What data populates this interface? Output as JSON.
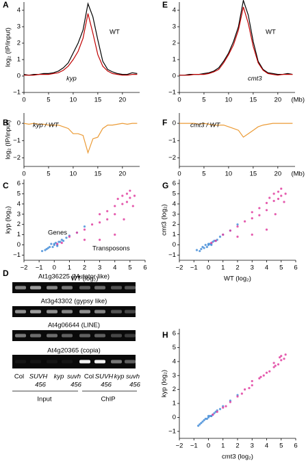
{
  "chart_data": [
    {
      "type": "line",
      "label": "A",
      "ylabel": "log₂ (IP/input)",
      "x": [
        0,
        1,
        2,
        3,
        4,
        5,
        6,
        7,
        8,
        9,
        10,
        11,
        12,
        13,
        14,
        15,
        16,
        17,
        18,
        19,
        20,
        21,
        22,
        23
      ],
      "xlim": [
        0,
        23.5
      ],
      "xticks": [
        0,
        5,
        10,
        15,
        20
      ],
      "ylim": [
        -1,
        4.5
      ],
      "yticks": [
        {
          "value": -1,
          "label": "−1"
        },
        0,
        1,
        2,
        3,
        4
      ],
      "series": [
        {
          "name": "WT",
          "color": "#000000",
          "values": [
            0.1,
            0.05,
            0.1,
            0.1,
            0.15,
            0.15,
            0.2,
            0.3,
            0.5,
            0.8,
            1.4,
            2.0,
            2.8,
            4.4,
            3.6,
            2.2,
            0.9,
            0.4,
            0.25,
            0.15,
            0.1,
            0.1,
            0.2,
            0.15
          ]
        },
        {
          "name": "kyp",
          "color": "#c00000",
          "values": [
            0.05,
            0.05,
            0.05,
            0.1,
            0.1,
            0.1,
            0.15,
            0.2,
            0.35,
            0.6,
            1.0,
            1.5,
            2.3,
            3.8,
            2.6,
            1.3,
            0.6,
            0.3,
            0.15,
            0.1,
            0.05,
            0.05,
            0.1,
            0.1
          ]
        }
      ]
    },
    {
      "type": "line",
      "label": "B",
      "ylabel": "log₂ (IP/input)",
      "x": [
        0,
        1,
        2,
        3,
        4,
        5,
        6,
        7,
        8,
        9,
        10,
        11,
        12,
        13,
        14,
        15,
        16,
        17,
        18,
        19,
        20,
        21,
        22,
        23
      ],
      "xlim": [
        0,
        23.5
      ],
      "xticks": [
        0,
        5,
        10,
        15,
        20
      ],
      "ylim": [
        -2.5,
        0.6
      ],
      "yticks": [
        {
          "value": -2,
          "label": "−2"
        },
        {
          "value": -1,
          "label": "−1"
        },
        0
      ],
      "series": [
        {
          "name": "kyp / WT",
          "color": "#eb9a34",
          "values": [
            0,
            -0.05,
            0,
            -0.05,
            -0.05,
            -0.1,
            -0.1,
            -0.1,
            -0.2,
            -0.3,
            -0.6,
            -0.6,
            -0.7,
            -1.7,
            -0.9,
            -0.8,
            -0.3,
            -0.1,
            -0.1,
            -0.05,
            0,
            -0.05,
            0,
            0
          ]
        }
      ]
    },
    {
      "type": "line",
      "label": "E",
      "xlabel": "(Mb)",
      "x": [
        0,
        1,
        2,
        3,
        4,
        5,
        6,
        7,
        8,
        9,
        10,
        11,
        12,
        13,
        14,
        15,
        16,
        17,
        18,
        19,
        20,
        21,
        22,
        23
      ],
      "xlim": [
        0,
        23.5
      ],
      "xticks": [
        0,
        5,
        10,
        15,
        20
      ],
      "ylim": [
        -1,
        4.5
      ],
      "yticks": [
        {
          "value": -1,
          "label": "−1"
        },
        0,
        1,
        2,
        3,
        4
      ],
      "series": [
        {
          "name": "WT",
          "color": "#000000",
          "values": [
            0.05,
            0.05,
            0.1,
            0.1,
            0.1,
            0.15,
            0.2,
            0.3,
            0.5,
            0.9,
            1.4,
            2.1,
            3.0,
            4.6,
            3.7,
            2.1,
            0.9,
            0.4,
            0.2,
            0.15,
            0.1,
            0.1,
            0.15,
            0.1
          ]
        },
        {
          "name": "cmt3",
          "color": "#c00000",
          "values": [
            0.05,
            0.05,
            0.05,
            0.1,
            0.1,
            0.1,
            0.15,
            0.25,
            0.4,
            0.8,
            1.3,
            1.9,
            2.8,
            4.2,
            3.2,
            1.8,
            0.8,
            0.35,
            0.15,
            0.1,
            0.05,
            0.1,
            0.1,
            0.1
          ]
        }
      ]
    },
    {
      "type": "line",
      "label": "F",
      "xlabel": "(Mb)",
      "x": [
        0,
        1,
        2,
        3,
        4,
        5,
        6,
        7,
        8,
        9,
        10,
        11,
        12,
        13,
        14,
        15,
        16,
        17,
        18,
        19,
        20,
        21,
        22,
        23
      ],
      "xlim": [
        0,
        23.5
      ],
      "xticks": [
        0,
        5,
        10,
        15,
        20
      ],
      "ylim": [
        -2.5,
        0.6
      ],
      "yticks": [
        {
          "value": -2,
          "label": "−2"
        },
        {
          "value": -1,
          "label": "−1"
        },
        0
      ],
      "series": [
        {
          "name": "cmt3 / WT",
          "color": "#eb9a34",
          "values": [
            0,
            0,
            0,
            0,
            -0.05,
            0,
            -0.05,
            -0.1,
            -0.1,
            -0.1,
            -0.2,
            -0.3,
            -0.4,
            -0.8,
            -0.6,
            -0.4,
            -0.2,
            -0.1,
            -0.05,
            0,
            0,
            0,
            0,
            0
          ]
        }
      ]
    },
    {
      "type": "scatter",
      "label": "C",
      "xlabel": "WT (log₂)",
      "ylabel": "kyp (log₂)",
      "xlim": [
        -2,
        6
      ],
      "xticks": [
        {
          "value": -2,
          "label": "−2"
        },
        {
          "value": -1,
          "label": "−1"
        },
        0,
        1,
        2,
        3,
        4,
        5,
        6
      ],
      "ylim": [
        -1.5,
        6.4
      ],
      "yticks": [
        {
          "value": -1,
          "label": "−1"
        },
        0,
        1,
        2,
        3,
        4,
        5,
        6
      ],
      "series": [
        {
          "name": "Genes",
          "color": "#4a90d9",
          "x": [
            -0.8,
            -0.5,
            -0.3,
            -0.2,
            0,
            0.1,
            0.2,
            0.3,
            -0.6,
            -0.1,
            0.4,
            0.5,
            0.8,
            1.0,
            1.5,
            -0.4,
            0,
            0.2,
            0.6,
            2.0
          ],
          "values": [
            -0.6,
            -0.4,
            -0.2,
            0.1,
            0,
            0.2,
            -0.1,
            0.3,
            -0.5,
            -0.2,
            0.3,
            0.5,
            0.7,
            0.9,
            1.2,
            -0.3,
            0.1,
            0,
            0.4,
            1.8
          ]
        },
        {
          "name": "Transposons",
          "color": "#e040a0",
          "x": [
            0.2,
            0.5,
            1,
            1.5,
            2,
            2.5,
            3,
            3,
            3.5,
            3.5,
            4,
            4,
            4.2,
            4.5,
            4.5,
            4.8,
            5,
            5,
            5.2,
            4,
            3,
            2,
            4.6,
            5.3,
            4.8
          ],
          "values": [
            0.1,
            0.2,
            0.8,
            1.2,
            1.5,
            2.0,
            2.2,
            3.0,
            2.5,
            3.3,
            3.0,
            3.8,
            4.5,
            4.0,
            4.8,
            4.2,
            4.6,
            5.3,
            3.8,
            1.0,
            0.5,
            0.5,
            2.5,
            4.8,
            5.0
          ]
        }
      ]
    },
    {
      "type": "scatter",
      "label": "G",
      "xlabel": "WT (log₂)",
      "ylabel": "cmt3 (log₂)",
      "xlim": [
        -2,
        6
      ],
      "xticks": [
        {
          "value": -2,
          "label": "−2"
        },
        {
          "value": -1,
          "label": "−1"
        },
        0,
        1,
        2,
        3,
        4,
        5,
        6
      ],
      "ylim": [
        -1.5,
        6.4
      ],
      "yticks": [
        {
          "value": -1,
          "label": "−1"
        },
        0,
        1,
        2,
        3,
        4,
        5,
        6
      ],
      "series": [
        {
          "color": "#4a90d9",
          "x": [
            -0.8,
            -0.5,
            -0.3,
            -0.2,
            0,
            0.1,
            0.2,
            0.3,
            -0.6,
            -0.1,
            0.4,
            0.5,
            0.8,
            1.0,
            1.5,
            -0.4,
            0,
            0.2,
            0.6,
            2.0
          ],
          "values": [
            -0.5,
            -0.4,
            -0.3,
            0,
            0.1,
            0.1,
            0,
            0.3,
            -0.6,
            -0.2,
            0.4,
            0.4,
            0.8,
            1.0,
            1.4,
            -0.2,
            0,
            0.1,
            0.5,
            2.0
          ]
        },
        {
          "color": "#e040a0",
          "x": [
            0.2,
            0.5,
            1,
            1.5,
            2,
            2.5,
            3,
            3,
            3.5,
            3.5,
            4,
            4,
            4.2,
            4.5,
            4.5,
            4.8,
            5,
            5,
            5.2,
            4,
            3,
            2,
            4.6,
            5.3,
            4.8
          ],
          "values": [
            0.2,
            0.4,
            1.0,
            1.4,
            1.8,
            2.3,
            2.6,
            3.2,
            2.9,
            3.6,
            3.4,
            4.1,
            4.6,
            4.3,
            5.0,
            4.5,
            4.8,
            5.5,
            4.2,
            1.5,
            1.0,
            0.8,
            3.0,
            5.0,
            5.2
          ]
        }
      ]
    },
    {
      "type": "scatter",
      "label": "H",
      "xlabel": "cmt3 (log₂)",
      "ylabel": "kyp (log₂)",
      "xlim": [
        -2,
        6
      ],
      "xticks": [
        {
          "value": -2,
          "label": "−2"
        },
        {
          "value": -1,
          "label": "−1"
        },
        0,
        1,
        2,
        3,
        4,
        5,
        6
      ],
      "ylim": [
        -1.5,
        6.35
      ],
      "yticks": [
        {
          "value": -1,
          "label": "−1"
        },
        0,
        1,
        2,
        3,
        4,
        5,
        6
      ],
      "series": [
        {
          "color": "#4a90d9",
          "x": [
            -0.7,
            -0.5,
            -0.3,
            -0.2,
            0,
            0.1,
            0.2,
            0.3,
            -0.6,
            -0.1,
            0.4,
            0.5,
            0.8,
            1.0,
            -0.4,
            0,
            0.2,
            0.6,
            1.5,
            2.0
          ],
          "values": [
            -0.6,
            -0.4,
            -0.2,
            -0.1,
            0,
            0.1,
            0.1,
            0.2,
            -0.5,
            -0.1,
            0.3,
            0.4,
            0.6,
            0.8,
            -0.3,
            0.1,
            0.1,
            0.5,
            1.2,
            1.6
          ]
        },
        {
          "color": "#e040a0",
          "x": [
            0.3,
            0.6,
            1,
            1.5,
            2,
            2.3,
            2.5,
            3,
            3,
            3.5,
            3.8,
            4,
            4.2,
            4.5,
            4.5,
            4.8,
            5,
            5,
            5.2,
            1.2,
            2.8,
            3.6,
            4.6,
            5.3,
            4.9
          ],
          "values": [
            0.2,
            0.4,
            0.7,
            1.1,
            1.5,
            1.7,
            2.0,
            2.3,
            2.6,
            2.8,
            3.0,
            3.2,
            3.3,
            3.6,
            3.9,
            3.8,
            4.1,
            4.4,
            4.2,
            0.8,
            2.1,
            2.9,
            3.7,
            4.5,
            4.3
          ]
        }
      ]
    }
  ],
  "gel": {
    "label": "D",
    "rows": [
      "At1g36225 (Mutator like)",
      "At3g43302 (gypsy like)",
      "At4g06644 (LINE)",
      "At4g20365 (copia)"
    ],
    "lanes": [
      {
        "name": "Col"
      },
      {
        "name": "SUVH",
        "sub": "456"
      },
      {
        "name": "kyp"
      },
      {
        "name": "suvh",
        "sub": "456"
      },
      {
        "name": "Col"
      },
      {
        "name": "SUVH",
        "sub": "456"
      },
      {
        "name": "kyp"
      },
      {
        "name": "suvh",
        "sub": "456"
      }
    ],
    "groups": [
      "Input",
      "ChIP"
    ]
  }
}
